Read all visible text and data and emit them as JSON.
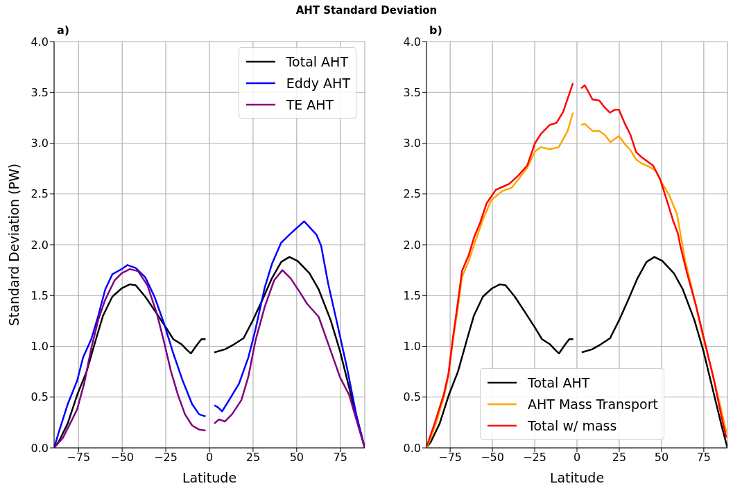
{
  "chart_data": [
    {
      "type": "line",
      "title": "AHT Standard Deviation",
      "annotations": [
        "a)"
      ],
      "xlabel": "Latitude",
      "ylabel": "Standard Deviation (PW)",
      "xlim": [
        -89,
        89
      ],
      "ylim": [
        0,
        4
      ],
      "xticks": [
        {
          "value": -75,
          "label": "−75"
        },
        {
          "value": -50,
          "label": "−50"
        },
        {
          "value": -25,
          "label": "−25"
        },
        0,
        25,
        50,
        75
      ],
      "yticks": [
        {
          "value": 0,
          "label": "0.0"
        },
        {
          "value": 0.5,
          "label": "0.5"
        },
        {
          "value": 1,
          "label": "1.0"
        },
        {
          "value": 1.5,
          "label": "1.5"
        },
        {
          "value": 2,
          "label": "2.0"
        },
        {
          "value": 2.5,
          "label": "2.5"
        },
        {
          "value": 3,
          "label": "3.0"
        },
        {
          "value": 3.5,
          "label": "3.5"
        },
        {
          "value": 4,
          "label": "4.0"
        }
      ],
      "grid": true,
      "legend": "top right",
      "series": [
        {
          "name": "Total AHT",
          "color": "#000000",
          "x": [
            -89,
            -86.4,
            -81.2,
            -75.8,
            -70.4,
            -65,
            -61,
            -55.6,
            -50.3,
            -45.6,
            -42.2,
            -36.8,
            -30.1,
            -24.7,
            -20.7,
            -16,
            -12.6,
            -10.6,
            -7.3,
            -4.6,
            -2.2,
            0,
            2.8,
            8.9,
            14.2,
            19.6,
            25,
            30.4,
            35.8,
            41.1,
            45.8,
            50.5,
            57.3,
            62.6,
            69.4,
            74.7,
            80.1,
            85.5,
            89
          ],
          "values": [
            0,
            0.06,
            0.24,
            0.52,
            0.75,
            1.07,
            1.3,
            1.49,
            1.57,
            1.61,
            1.6,
            1.49,
            1.32,
            1.18,
            1.07,
            1.02,
            0.96,
            0.93,
            1.01,
            1.07,
            1.07,
            null,
            0.94,
            0.97,
            1.02,
            1.08,
            1.26,
            1.46,
            1.67,
            1.83,
            1.88,
            1.84,
            1.72,
            1.56,
            1.26,
            0.96,
            0.59,
            0.22,
            0
          ]
        },
        {
          "name": "Eddy AHT",
          "color": "#0000ff",
          "x": [
            -89,
            -86.4,
            -81.2,
            -75.8,
            -72.4,
            -67.7,
            -63.7,
            -59.7,
            -55.6,
            -50.3,
            -46.9,
            -42.2,
            -36.8,
            -31.5,
            -26.1,
            -20.7,
            -15.3,
            -9.9,
            -5.9,
            -2.2,
            0,
            2.8,
            4.8,
            7.3,
            10.9,
            16.9,
            22.3,
            26.3,
            31.7,
            35.8,
            41.1,
            46.5,
            54.3,
            61.3,
            64,
            68,
            73.4,
            78.8,
            84.1,
            89
          ],
          "values": [
            0,
            0.15,
            0.43,
            0.66,
            0.89,
            1.07,
            1.3,
            1.56,
            1.71,
            1.76,
            1.8,
            1.77,
            1.68,
            1.49,
            1.23,
            0.93,
            0.66,
            0.43,
            0.33,
            0.31,
            null,
            0.42,
            0.4,
            0.36,
            0.46,
            0.63,
            0.89,
            1.16,
            1.58,
            1.81,
            2.02,
            2.11,
            2.23,
            2.1,
            1.99,
            1.62,
            1.21,
            0.79,
            0.33,
            0
          ]
        },
        {
          "name": "TE AHT",
          "color": "#800080",
          "x": [
            -89,
            -83.9,
            -79.8,
            -75.8,
            -71.8,
            -67.7,
            -63.7,
            -59.7,
            -54.3,
            -50.3,
            -45.6,
            -40.9,
            -35.5,
            -30.1,
            -26.1,
            -22,
            -18,
            -14,
            -9.9,
            -5.9,
            -2.2,
            0,
            2.8,
            5.5,
            8.9,
            12.9,
            18.3,
            22.3,
            26.3,
            31.7,
            37.1,
            41.8,
            46.5,
            51.9,
            55.9,
            62.6,
            69.4,
            74.7,
            80.1,
            85.5,
            89
          ],
          "values": [
            0,
            0.1,
            0.24,
            0.38,
            0.63,
            0.98,
            1.26,
            1.46,
            1.65,
            1.72,
            1.76,
            1.74,
            1.6,
            1.32,
            1.05,
            0.75,
            0.52,
            0.33,
            0.22,
            0.18,
            0.17,
            null,
            0.24,
            0.28,
            0.26,
            0.33,
            0.47,
            0.7,
            1.05,
            1.39,
            1.65,
            1.75,
            1.67,
            1.53,
            1.42,
            1.29,
            0.96,
            0.7,
            0.52,
            0.2,
            0
          ]
        }
      ]
    },
    {
      "type": "line",
      "annotations": [
        "b)"
      ],
      "xlabel": "Latitude",
      "xlim": [
        -89,
        89
      ],
      "ylim": [
        0,
        4
      ],
      "xticks": [
        {
          "value": -75,
          "label": "−75"
        },
        {
          "value": -50,
          "label": "−50"
        },
        {
          "value": -25,
          "label": "−25"
        },
        0,
        25,
        50,
        75
      ],
      "yticks": [
        {
          "value": 0,
          "label": "0.0"
        },
        {
          "value": 0.5,
          "label": "0.5"
        },
        {
          "value": 1,
          "label": "1.0"
        },
        {
          "value": 1.5,
          "label": "1.5"
        },
        {
          "value": 2,
          "label": "2.0"
        },
        {
          "value": 2.5,
          "label": "2.5"
        },
        {
          "value": 3,
          "label": "3.0"
        },
        {
          "value": 3.5,
          "label": "3.5"
        },
        {
          "value": 4,
          "label": "4.0"
        }
      ],
      "grid": true,
      "legend": "bottom",
      "series": [
        {
          "name": "Total AHT",
          "color": "#000000",
          "x": [
            -89,
            -86.4,
            -81.2,
            -75.8,
            -70.4,
            -65,
            -61,
            -55.6,
            -50.3,
            -45.6,
            -42.2,
            -36.8,
            -30.1,
            -24.7,
            -20.7,
            -16,
            -12.6,
            -10.6,
            -7.3,
            -4.6,
            -2.2,
            0,
            2.8,
            8.9,
            14.2,
            19.6,
            25,
            30.4,
            35.8,
            41.1,
            45.8,
            50.5,
            57.3,
            62.6,
            69.4,
            74.7,
            80.1,
            85.5,
            89
          ],
          "values": [
            0,
            0.06,
            0.24,
            0.52,
            0.75,
            1.07,
            1.3,
            1.49,
            1.57,
            1.61,
            1.6,
            1.49,
            1.32,
            1.18,
            1.07,
            1.02,
            0.96,
            0.93,
            1.01,
            1.07,
            1.07,
            null,
            0.94,
            0.97,
            1.02,
            1.08,
            1.26,
            1.46,
            1.67,
            1.83,
            1.88,
            1.84,
            1.72,
            1.56,
            1.26,
            0.96,
            0.59,
            0.22,
            0
          ]
        },
        {
          "name": "AHT Mass Transport",
          "color": "#ffa500",
          "x": [
            -88.8,
            -84,
            -78.7,
            -76,
            -73.4,
            -70.7,
            -68,
            -64,
            -60,
            -56,
            -50.7,
            -44,
            -38.7,
            -34.8,
            -29.4,
            -24.8,
            -21.4,
            -16.1,
            -10.8,
            -5.5,
            -2.4,
            0,
            2.5,
            4.6,
            9.2,
            13.2,
            16.5,
            19.8,
            24.8,
            28.4,
            31.7,
            35,
            38.4,
            42.4,
            46.4,
            49.1,
            54.5,
            59.2,
            61.8,
            63.8,
            69.1,
            74.4,
            79.8,
            85.1,
            88.4
          ],
          "values": [
            0,
            0.21,
            0.5,
            0.71,
            1.05,
            1.35,
            1.68,
            1.84,
            2.04,
            2.23,
            2.44,
            2.53,
            2.56,
            2.64,
            2.76,
            2.92,
            2.96,
            2.94,
            2.96,
            3.12,
            3.3,
            null,
            3.18,
            3.19,
            3.12,
            3.12,
            3.08,
            3.01,
            3.07,
            2.99,
            2.93,
            2.84,
            2.8,
            2.77,
            2.73,
            2.64,
            2.49,
            2.3,
            2.05,
            1.86,
            1.49,
            1.1,
            0.76,
            0.39,
            0.15
          ]
        },
        {
          "name": "Total w/ mass",
          "color": "#ff0000",
          "x": [
            -88.8,
            -84,
            -78.7,
            -76,
            -73.4,
            -70.7,
            -68,
            -64,
            -60.7,
            -57.4,
            -53.4,
            -48,
            -44,
            -40,
            -34.8,
            -29.4,
            -24.8,
            -21.4,
            -16.1,
            -12.1,
            -8.1,
            -5.5,
            -2.4,
            0,
            2.5,
            4.6,
            9.2,
            13.2,
            16.5,
            19.5,
            22.5,
            24.8,
            28.4,
            31.7,
            35,
            38.4,
            42.4,
            45,
            49.1,
            53.1,
            57,
            59.7,
            61.1,
            65.1,
            70.4,
            75.8,
            81.1,
            86.2,
            88.4
          ],
          "values": [
            0.02,
            0.25,
            0.53,
            0.73,
            1.08,
            1.4,
            1.74,
            1.9,
            2.08,
            2.21,
            2.41,
            2.54,
            2.57,
            2.6,
            2.68,
            2.78,
            3,
            3.09,
            3.18,
            3.2,
            3.31,
            3.44,
            3.59,
            null,
            3.54,
            3.57,
            3.43,
            3.42,
            3.35,
            3.3,
            3.33,
            3.33,
            3.19,
            3.08,
            2.91,
            2.86,
            2.81,
            2.78,
            2.65,
            2.44,
            2.23,
            2.11,
            1.99,
            1.72,
            1.4,
            1.03,
            0.66,
            0.25,
            0.1
          ]
        }
      ]
    }
  ]
}
